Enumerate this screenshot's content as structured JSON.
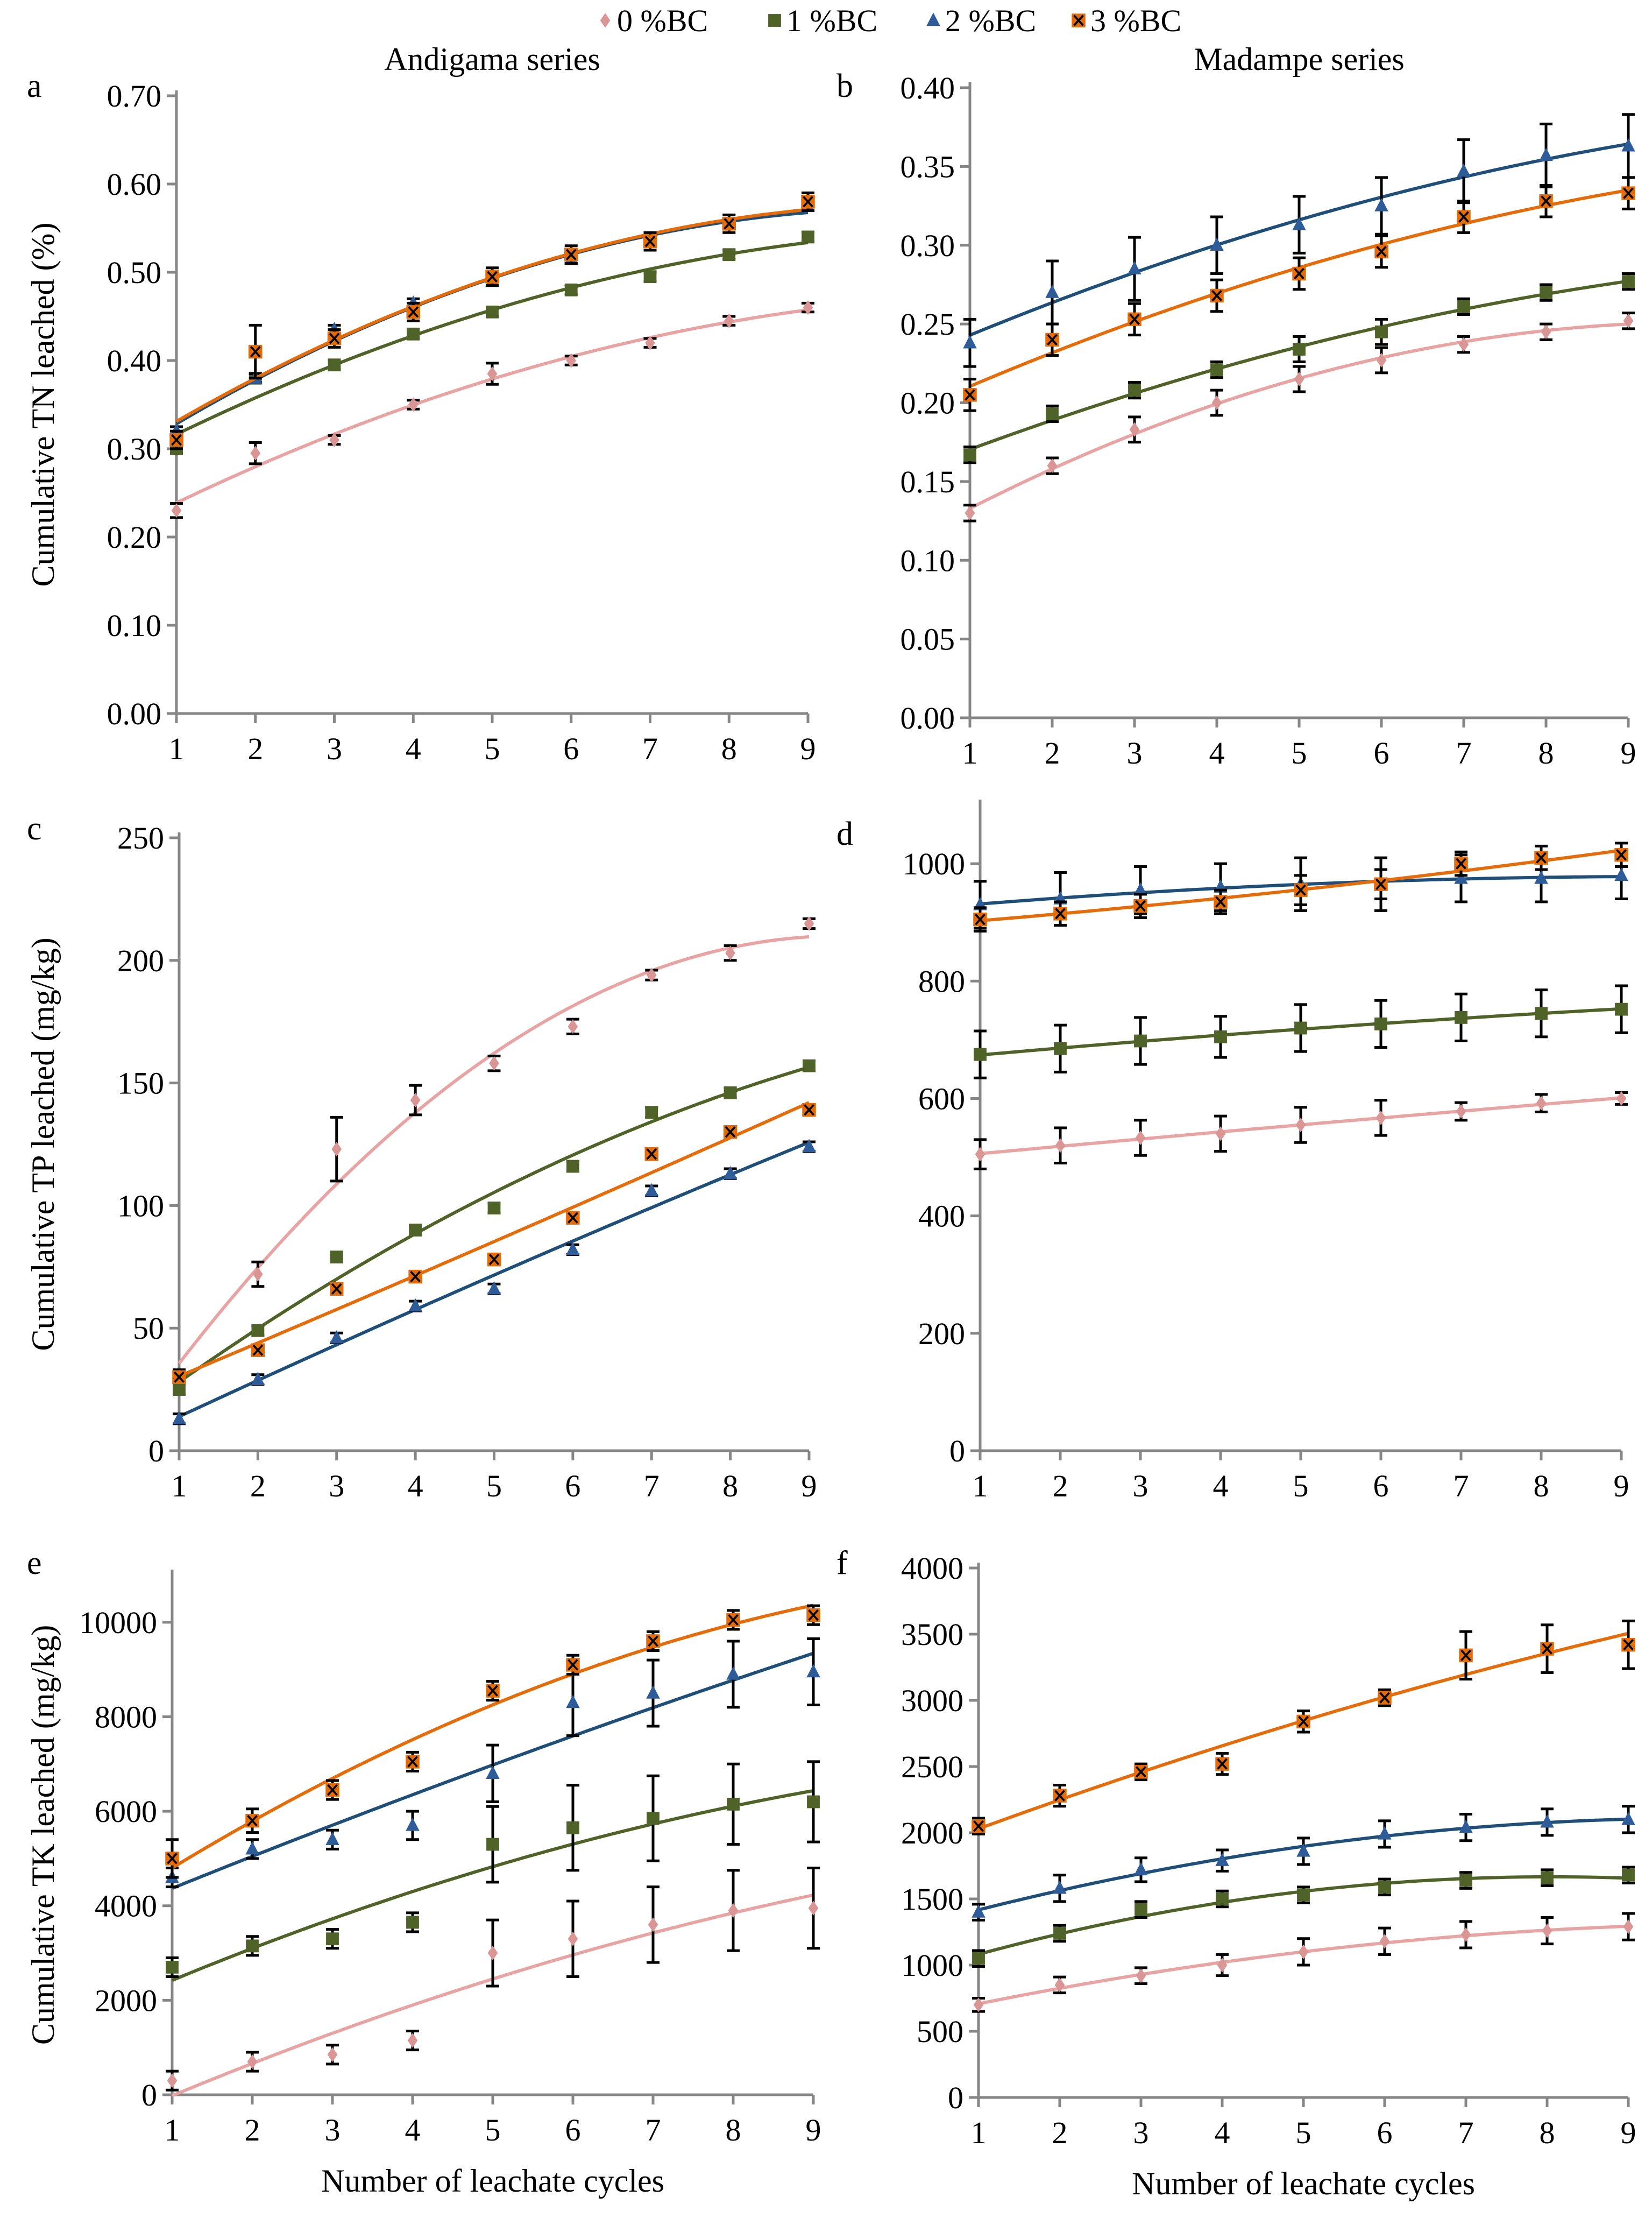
{
  "legend": {
    "placement": "top-center",
    "entries": [
      {
        "label": "0 %BC",
        "marker": "diamond",
        "color": "#d99694",
        "line": "#e8a3a3"
      },
      {
        "label": "1 %BC",
        "marker": "square",
        "color": "#4f6228",
        "line": "#4f6228"
      },
      {
        "label": "2 %BC",
        "marker": "triangle",
        "color": "#2e5c99",
        "line": "#1f4e79"
      },
      {
        "label": "3 %BC",
        "marker": "square-x",
        "color": "#e46c0a",
        "line": "#e46c0a"
      }
    ]
  },
  "chart_data": [
    {
      "panel": "a",
      "type": "scatter",
      "title": "Andigama series",
      "ylabel": "Cumulative TN leached (%)",
      "xlabel": "",
      "x": [
        1,
        2,
        3,
        4,
        5,
        6,
        7,
        8,
        9
      ],
      "xlim": [
        1,
        9
      ],
      "ylim": [
        0,
        0.7
      ],
      "ystep": 0.1,
      "ydecimals": 2,
      "trendline": "polynomial",
      "grid": false,
      "series": [
        {
          "name": "0 %BC",
          "values": [
            0.23,
            0.295,
            0.31,
            0.35,
            0.385,
            0.4,
            0.42,
            0.445,
            0.46
          ],
          "errors": [
            0.008,
            0.012,
            0.005,
            0.005,
            0.012,
            0.005,
            0.005,
            0.005,
            0.005
          ]
        },
        {
          "name": "1 %BC",
          "values": [
            0.3,
            0.38,
            0.395,
            0.43,
            0.455,
            0.48,
            0.495,
            0.52,
            0.54
          ],
          "errors": [
            0.005,
            0.005,
            0.005,
            0.005,
            0.005,
            0.005,
            0.005,
            0.005,
            0.005
          ]
        },
        {
          "name": "2 %BC",
          "values": [
            0.32,
            0.38,
            0.435,
            0.465,
            0.49,
            0.515,
            0.535,
            0.555,
            0.575
          ],
          "errors": [
            0.005,
            0.005,
            0.005,
            0.005,
            0.005,
            0.005,
            0.005,
            0.005,
            0.005
          ]
        },
        {
          "name": "3 %BC",
          "values": [
            0.31,
            0.41,
            0.425,
            0.455,
            0.495,
            0.52,
            0.535,
            0.555,
            0.58
          ],
          "errors": [
            0.01,
            0.03,
            0.01,
            0.01,
            0.01,
            0.01,
            0.01,
            0.01,
            0.01
          ]
        }
      ]
    },
    {
      "panel": "b",
      "type": "scatter",
      "title": "Madampe series",
      "ylabel": "",
      "xlabel": "",
      "x": [
        1,
        2,
        3,
        4,
        5,
        6,
        7,
        8,
        9
      ],
      "xlim": [
        1,
        9
      ],
      "ylim": [
        0,
        0.4
      ],
      "ystep": 0.05,
      "ydecimals": 2,
      "trendline": "polynomial",
      "grid": false,
      "series": [
        {
          "name": "0 %BC",
          "values": [
            0.13,
            0.16,
            0.183,
            0.2,
            0.215,
            0.227,
            0.237,
            0.245,
            0.252
          ],
          "errors": [
            0.005,
            0.005,
            0.008,
            0.008,
            0.008,
            0.008,
            0.005,
            0.005,
            0.005
          ]
        },
        {
          "name": "1 %BC",
          "values": [
            0.167,
            0.193,
            0.208,
            0.221,
            0.234,
            0.245,
            0.261,
            0.27,
            0.277
          ],
          "errors": [
            0.005,
            0.005,
            0.005,
            0.005,
            0.008,
            0.008,
            0.005,
            0.005,
            0.005
          ]
        },
        {
          "name": "2 %BC",
          "values": [
            0.238,
            0.27,
            0.285,
            0.3,
            0.313,
            0.325,
            0.347,
            0.357,
            0.363
          ],
          "errors": [
            0.015,
            0.02,
            0.02,
            0.018,
            0.018,
            0.018,
            0.02,
            0.02,
            0.02
          ]
        },
        {
          "name": "3 %BC",
          "values": [
            0.205,
            0.24,
            0.253,
            0.268,
            0.282,
            0.296,
            0.318,
            0.328,
            0.333
          ],
          "errors": [
            0.01,
            0.01,
            0.01,
            0.01,
            0.01,
            0.01,
            0.01,
            0.01,
            0.01
          ]
        }
      ]
    },
    {
      "panel": "c",
      "type": "scatter",
      "title": "",
      "ylabel": "Cumulative TP leached (mg/kg)",
      "xlabel": "",
      "x": [
        1,
        2,
        3,
        4,
        5,
        6,
        7,
        8,
        9
      ],
      "xlim": [
        1,
        9
      ],
      "ylim": [
        0,
        250
      ],
      "ystep": 50,
      "ydecimals": 0,
      "trendline": "polynomial",
      "grid": false,
      "series": [
        {
          "name": "0 %BC",
          "values": [
            30,
            72,
            123,
            143,
            158,
            173,
            194,
            203,
            215
          ],
          "errors": [
            3,
            5,
            13,
            6,
            3,
            3,
            2,
            3,
            2
          ]
        },
        {
          "name": "1 %BC",
          "values": [
            25,
            49,
            79,
            90,
            99,
            116,
            138,
            146,
            157
          ],
          "errors": [
            2,
            2,
            2,
            2,
            2,
            2,
            2,
            2,
            2
          ]
        },
        {
          "name": "2 %BC",
          "values": [
            13,
            29,
            46,
            59,
            66,
            82,
            106,
            113,
            124
          ],
          "errors": [
            2,
            2,
            2,
            2,
            2,
            2,
            2,
            2,
            2
          ]
        },
        {
          "name": "3 %BC",
          "values": [
            30,
            41,
            66,
            71,
            78,
            95,
            121,
            130,
            139
          ],
          "errors": [
            2,
            2,
            2,
            2,
            2,
            2,
            2,
            2,
            2
          ]
        }
      ]
    },
    {
      "panel": "d",
      "type": "scatter",
      "title": "",
      "ylabel": "",
      "xlabel": "",
      "x": [
        1,
        2,
        3,
        4,
        5,
        6,
        7,
        8,
        9
      ],
      "xlim": [
        1,
        9
      ],
      "ylim": [
        0,
        1100
      ],
      "ystep": 200,
      "ydecimals": 0,
      "trendline": "polynomial",
      "grid": false,
      "series": [
        {
          "name": "0 %BC",
          "values": [
            505,
            520,
            533,
            540,
            555,
            567,
            578,
            592,
            600
          ],
          "errors": [
            25,
            30,
            30,
            30,
            30,
            30,
            15,
            15,
            10
          ]
        },
        {
          "name": "1 %BC",
          "values": [
            675,
            685,
            698,
            705,
            720,
            727,
            738,
            745,
            752
          ],
          "errors": [
            40,
            40,
            40,
            35,
            40,
            40,
            40,
            40,
            40
          ]
        },
        {
          "name": "2 %BC",
          "values": [
            930,
            940,
            955,
            960,
            965,
            965,
            975,
            975,
            980
          ],
          "errors": [
            40,
            45,
            40,
            40,
            45,
            45,
            40,
            40,
            40
          ]
        },
        {
          "name": "3 %BC",
          "values": [
            905,
            915,
            928,
            935,
            955,
            965,
            1000,
            1010,
            1015
          ],
          "errors": [
            20,
            20,
            20,
            20,
            25,
            25,
            20,
            20,
            20
          ]
        }
      ]
    },
    {
      "panel": "e",
      "type": "scatter",
      "title": "",
      "ylabel": "Cumulative TK leached (mg/kg)",
      "xlabel": "Number of leachate cycles",
      "x": [
        1,
        2,
        3,
        4,
        5,
        6,
        7,
        8,
        9
      ],
      "xlim": [
        1,
        9
      ],
      "ylim": [
        0,
        11000
      ],
      "ystep": 2000,
      "ydecimals": 0,
      "trendline": "polynomial",
      "grid": false,
      "series": [
        {
          "name": "0 %BC",
          "values": [
            300,
            700,
            850,
            1150,
            3000,
            3300,
            3600,
            3900,
            3950
          ],
          "errors": [
            200,
            200,
            200,
            200,
            700,
            800,
            800,
            850,
            850
          ]
        },
        {
          "name": "1 %BC",
          "values": [
            2700,
            3150,
            3300,
            3650,
            5300,
            5650,
            5850,
            6150,
            6200
          ],
          "errors": [
            200,
            200,
            200,
            200,
            800,
            900,
            900,
            850,
            850
          ]
        },
        {
          "name": "2 %BC",
          "values": [
            4600,
            5200,
            5400,
            5700,
            6800,
            8300,
            8500,
            8900,
            8950
          ],
          "errors": [
            200,
            200,
            200,
            300,
            600,
            700,
            700,
            700,
            700
          ]
        },
        {
          "name": "3 %BC",
          "values": [
            5000,
            5800,
            6450,
            7050,
            8550,
            9100,
            9600,
            10050,
            10150
          ],
          "errors": [
            400,
            250,
            200,
            200,
            200,
            200,
            200,
            200,
            200
          ]
        }
      ]
    },
    {
      "panel": "f",
      "type": "scatter",
      "title": "",
      "ylabel": "",
      "xlabel": "Number of leachate cycles",
      "x": [
        1,
        2,
        3,
        4,
        5,
        6,
        7,
        8,
        9
      ],
      "xlim": [
        1,
        9
      ],
      "ylim": [
        0,
        4000
      ],
      "ystep": 500,
      "ydecimals": 0,
      "trendline": "polynomial",
      "grid": false,
      "series": [
        {
          "name": "0 %BC",
          "values": [
            700,
            850,
            920,
            1000,
            1100,
            1180,
            1230,
            1260,
            1290
          ],
          "errors": [
            50,
            60,
            60,
            80,
            100,
            100,
            100,
            100,
            100
          ]
        },
        {
          "name": "1 %BC",
          "values": [
            1050,
            1240,
            1420,
            1500,
            1530,
            1590,
            1640,
            1660,
            1680
          ],
          "errors": [
            60,
            60,
            60,
            60,
            60,
            60,
            60,
            60,
            60
          ]
        },
        {
          "name": "2 %BC",
          "values": [
            1400,
            1580,
            1720,
            1790,
            1860,
            1990,
            2040,
            2080,
            2100
          ],
          "errors": [
            60,
            100,
            90,
            80,
            100,
            100,
            100,
            100,
            100
          ]
        },
        {
          "name": "3 %BC",
          "values": [
            2050,
            2280,
            2460,
            2520,
            2840,
            3020,
            3340,
            3390,
            3420
          ],
          "errors": [
            60,
            80,
            60,
            80,
            80,
            60,
            180,
            180,
            180
          ]
        }
      ]
    }
  ]
}
